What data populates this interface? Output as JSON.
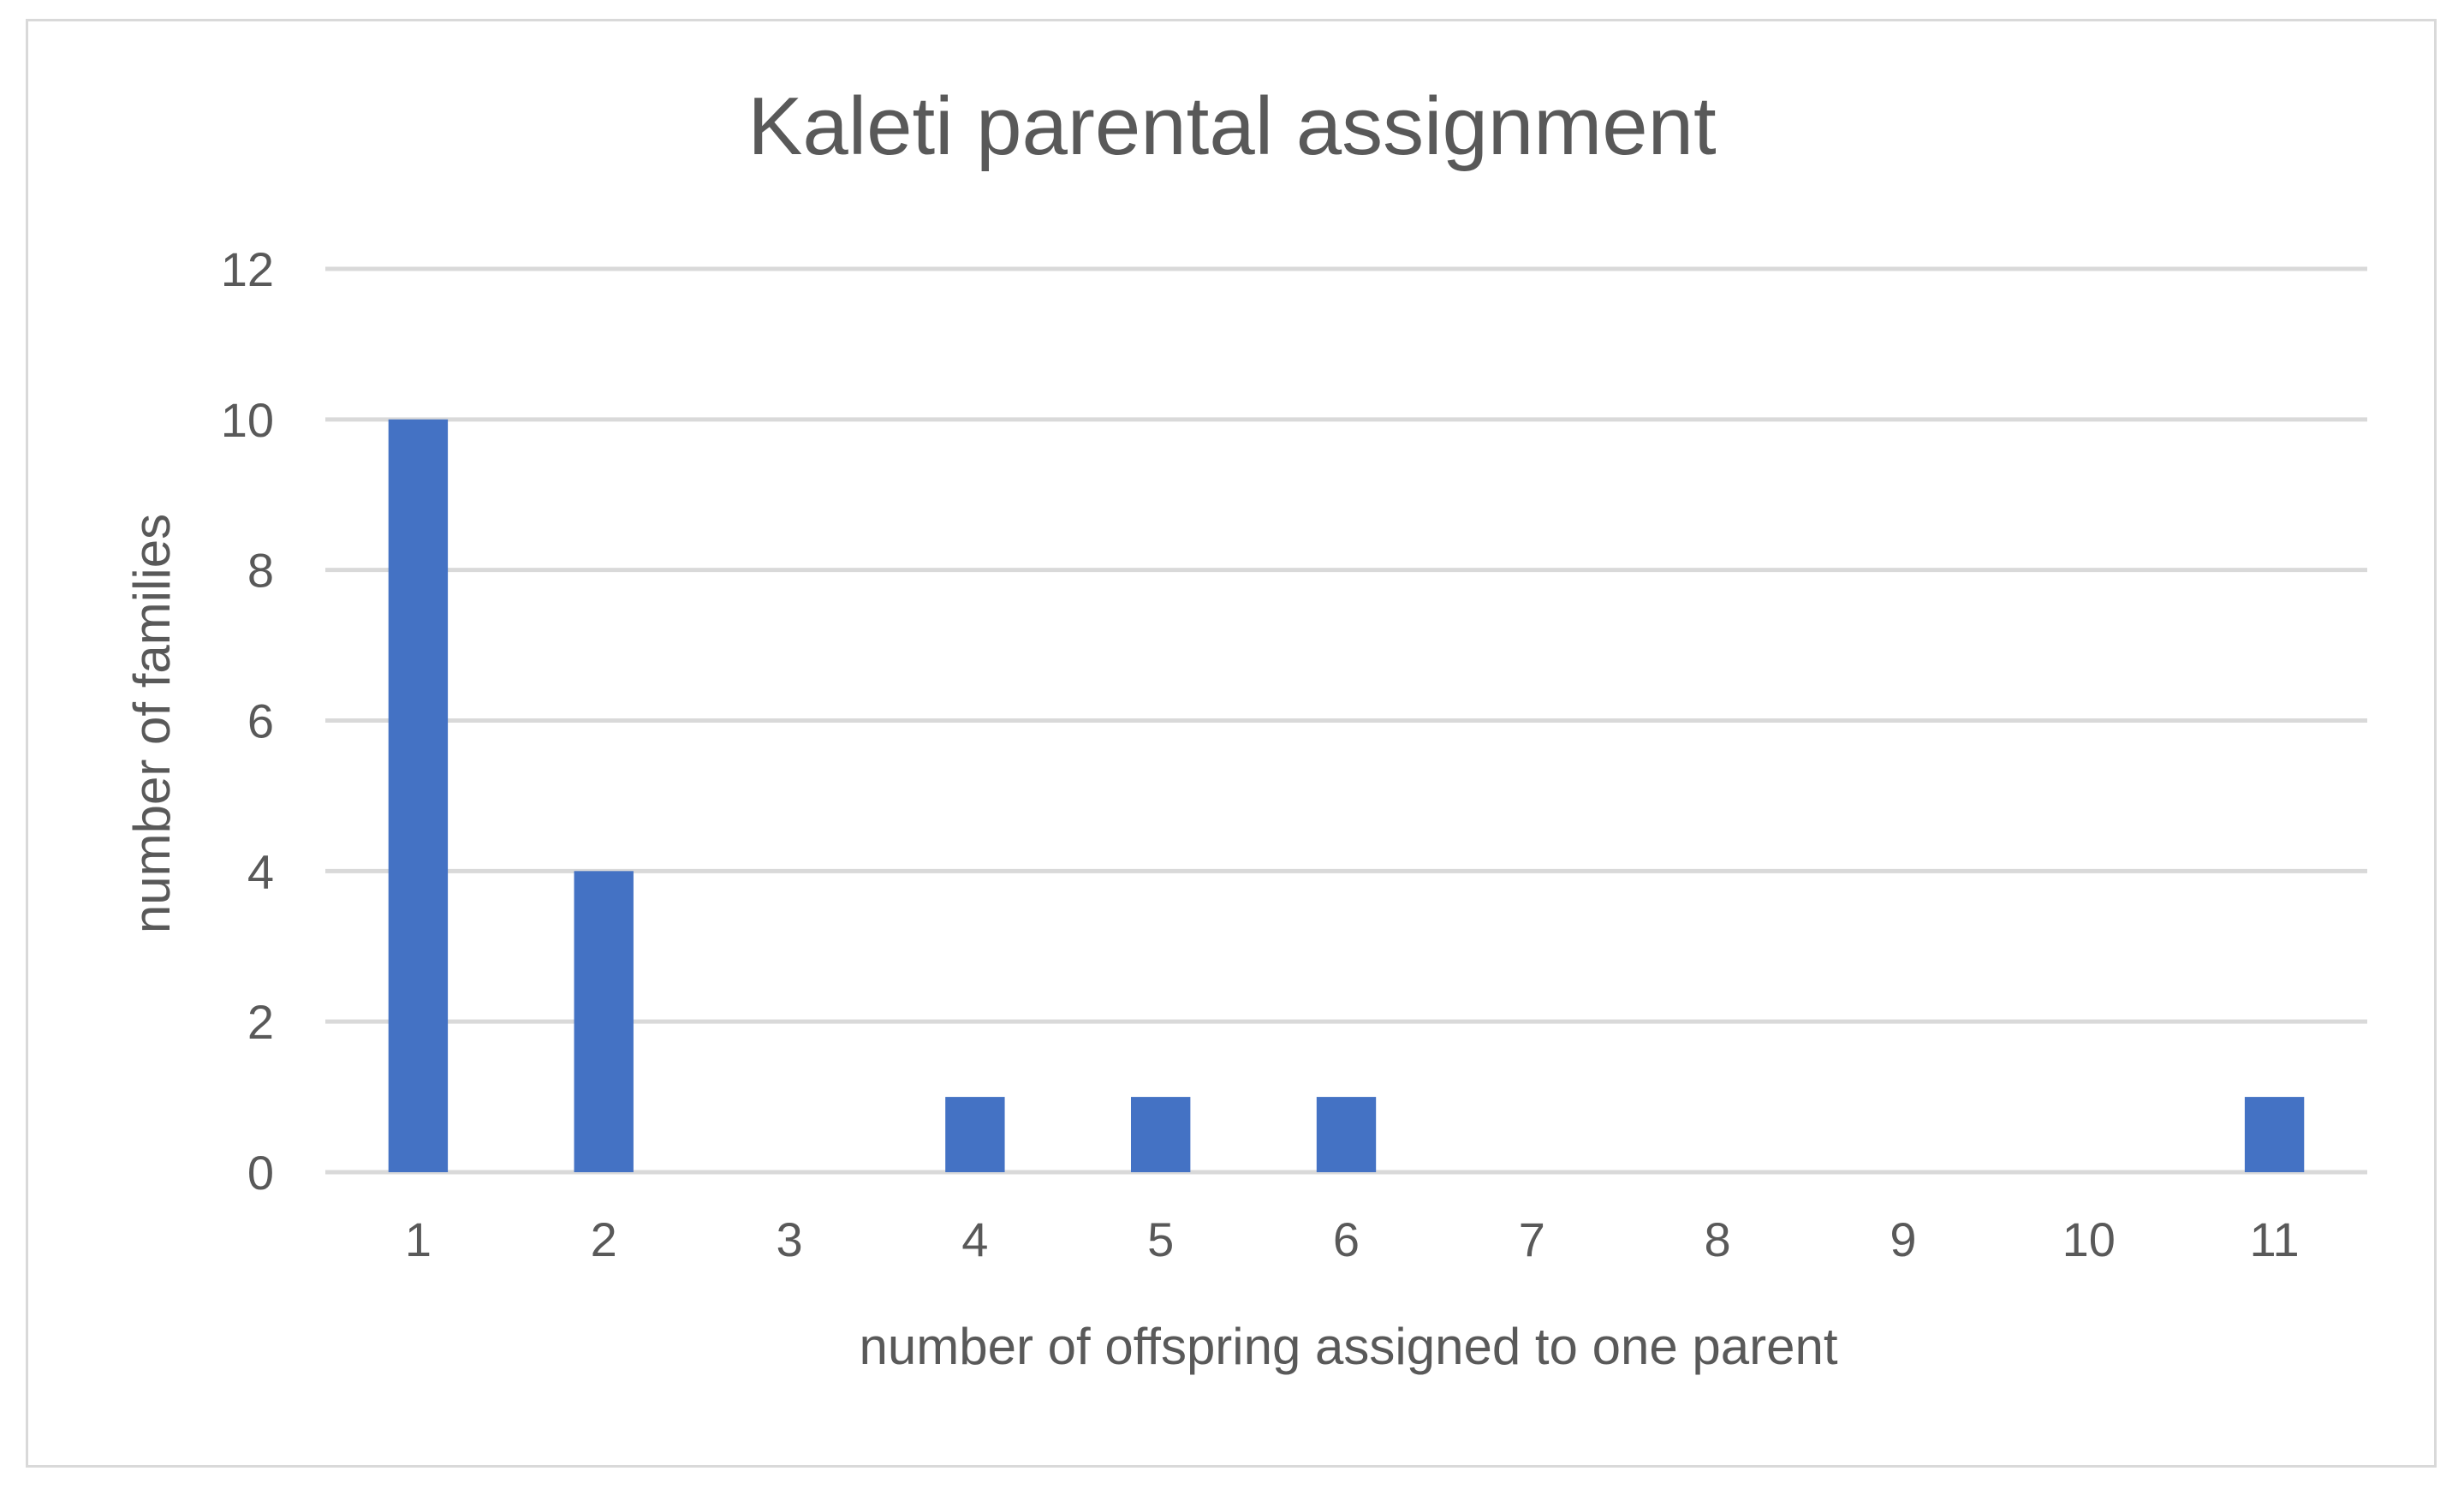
{
  "chart_data": {
    "type": "bar",
    "title": "Kaleti parental assignment",
    "xlabel": "number of offspring assigned to one parent",
    "ylabel": "number of families",
    "categories": [
      "1",
      "2",
      "3",
      "4",
      "5",
      "6",
      "7",
      "8",
      "9",
      "10",
      "11"
    ],
    "series": [
      {
        "values": [
          10,
          4,
          0,
          1,
          1,
          1,
          0,
          0,
          0,
          0,
          1
        ],
        "color": "#4472c4"
      }
    ],
    "ylim": [
      0,
      12
    ],
    "yticks": [
      0,
      2,
      4,
      6,
      8,
      10,
      12
    ],
    "grid": true,
    "legend": "none"
  }
}
